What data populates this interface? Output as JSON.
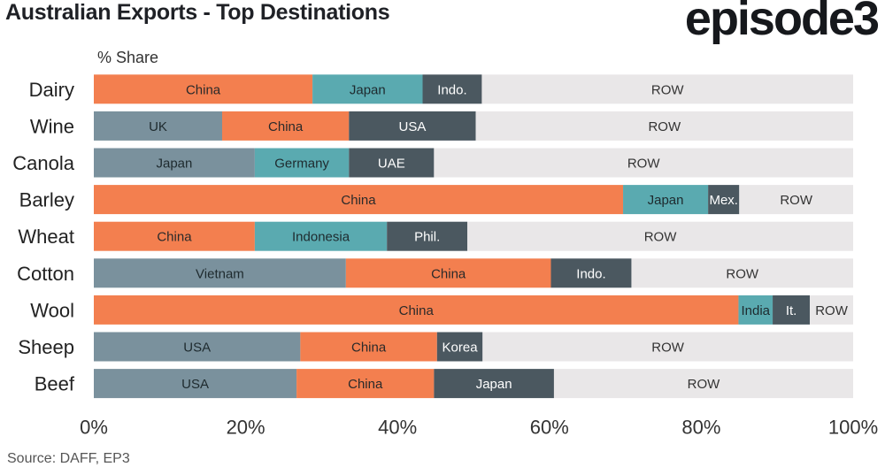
{
  "title": "Australian Exports - Top Destinations",
  "brand": "episode3",
  "source": "Source: DAFF, EP3",
  "chart_data": {
    "type": "bar",
    "orientation": "horizontal-stacked-100",
    "ylabel": "% Share",
    "xlim": [
      0,
      100
    ],
    "x_ticks": [
      "0%",
      "20%",
      "40%",
      "60%",
      "80%",
      "100%"
    ],
    "x_tick_values": [
      0,
      20,
      40,
      60,
      80,
      100
    ],
    "colors": {
      "orange": "#f37f4f",
      "teal": "#5aaab0",
      "slate": "#7a919d",
      "dark": "#4b5860",
      "row": "#e9e7e8"
    },
    "bars": [
      {
        "category": "Dairy",
        "segments": [
          {
            "label": "China",
            "value": 28.8,
            "color": "orange"
          },
          {
            "label": "Japan",
            "value": 14.5,
            "color": "teal"
          },
          {
            "label": "Indo.",
            "value": 7.8,
            "color": "dark"
          },
          {
            "label": "ROW",
            "value": 48.9,
            "color": "row"
          }
        ]
      },
      {
        "category": "Wine",
        "segments": [
          {
            "label": "UK",
            "value": 16.9,
            "color": "slate"
          },
          {
            "label": "China",
            "value": 16.7,
            "color": "orange"
          },
          {
            "label": "USA",
            "value": 16.7,
            "color": "dark"
          },
          {
            "label": "ROW",
            "value": 49.7,
            "color": "row"
          }
        ]
      },
      {
        "category": "Canola",
        "segments": [
          {
            "label": "Japan",
            "value": 21.2,
            "color": "slate"
          },
          {
            "label": "Germany",
            "value": 12.4,
            "color": "teal"
          },
          {
            "label": "UAE",
            "value": 11.2,
            "color": "dark"
          },
          {
            "label": "ROW",
            "value": 55.2,
            "color": "row"
          }
        ]
      },
      {
        "category": "Barley",
        "segments": [
          {
            "label": "China",
            "value": 69.7,
            "color": "orange"
          },
          {
            "label": "Japan",
            "value": 11.2,
            "color": "teal"
          },
          {
            "label": "Mex.",
            "value": 4.1,
            "color": "dark"
          },
          {
            "label": "ROW",
            "value": 15.0,
            "color": "row"
          }
        ]
      },
      {
        "category": "Wheat",
        "segments": [
          {
            "label": "China",
            "value": 21.2,
            "color": "orange"
          },
          {
            "label": "Indonesia",
            "value": 17.4,
            "color": "teal"
          },
          {
            "label": "Phil.",
            "value": 10.6,
            "color": "dark"
          },
          {
            "label": "ROW",
            "value": 50.8,
            "color": "row"
          }
        ]
      },
      {
        "category": "Cotton",
        "segments": [
          {
            "label": "Vietnam",
            "value": 33.2,
            "color": "slate"
          },
          {
            "label": "China",
            "value": 27.0,
            "color": "orange"
          },
          {
            "label": "Indo.",
            "value": 10.6,
            "color": "dark"
          },
          {
            "label": "ROW",
            "value": 29.2,
            "color": "row"
          }
        ]
      },
      {
        "category": "Wool",
        "segments": [
          {
            "label": "China",
            "value": 84.9,
            "color": "orange"
          },
          {
            "label": "India",
            "value": 4.5,
            "color": "teal"
          },
          {
            "label": "It.",
            "value": 4.9,
            "color": "dark"
          },
          {
            "label": "ROW",
            "value": 5.7,
            "color": "row"
          }
        ]
      },
      {
        "category": "Sheep",
        "segments": [
          {
            "label": "USA",
            "value": 27.2,
            "color": "slate"
          },
          {
            "label": "China",
            "value": 18.0,
            "color": "orange"
          },
          {
            "label": "Korea",
            "value": 6.0,
            "color": "dark"
          },
          {
            "label": "ROW",
            "value": 48.8,
            "color": "row"
          }
        ]
      },
      {
        "category": "Beef",
        "segments": [
          {
            "label": "USA",
            "value": 26.7,
            "color": "slate"
          },
          {
            "label": "China",
            "value": 18.1,
            "color": "orange"
          },
          {
            "label": "Japan",
            "value": 15.8,
            "color": "dark"
          },
          {
            "label": "ROW",
            "value": 39.4,
            "color": "row"
          }
        ]
      }
    ]
  }
}
